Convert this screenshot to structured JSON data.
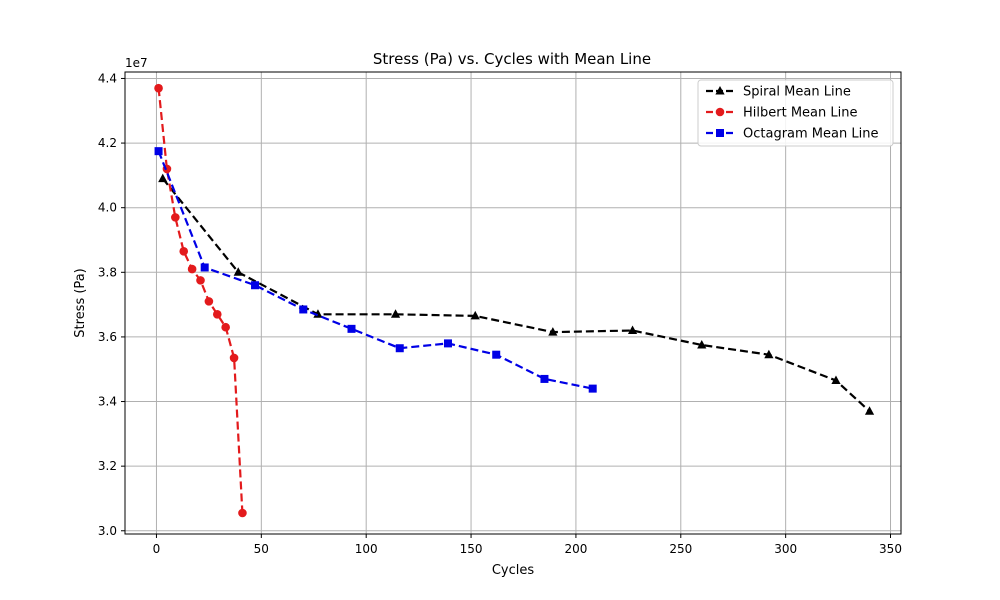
{
  "chart_data": {
    "type": "line",
    "title": "Stress (Pa) vs. Cycles with Mean Line",
    "xlabel": "Cycles",
    "ylabel": "Stress (Pa)",
    "y_offset_label": "1e7",
    "xlim": [
      -15,
      355
    ],
    "ylim": [
      29900000.0,
      44200000.0
    ],
    "x_ticks": [
      0,
      50,
      100,
      150,
      200,
      250,
      300,
      350
    ],
    "x_tick_labels": [
      "0",
      "50",
      "100",
      "150",
      "200",
      "250",
      "300",
      "350"
    ],
    "y_ticks": [
      30000000.0,
      32000000.0,
      34000000.0,
      36000000.0,
      38000000.0,
      40000000.0,
      42000000.0,
      44000000.0
    ],
    "y_tick_labels": [
      "3.0",
      "3.2",
      "3.4",
      "3.6",
      "3.8",
      "4.0",
      "4.2",
      "4.4"
    ],
    "grid": true,
    "legend_position": "top-right",
    "series": [
      {
        "name": "Spiral Mean Line",
        "color": "#000000",
        "marker": "triangle",
        "x": [
          3,
          39,
          77,
          114,
          152,
          189,
          227,
          260,
          292,
          324,
          340
        ],
        "y": [
          40900000.0,
          38000000.0,
          36700000.0,
          36700000.0,
          36650000.0,
          36150000.0,
          36200000.0,
          35750000.0,
          35450000.0,
          34650000.0,
          33700000.0
        ]
      },
      {
        "name": "Hilbert Mean Line",
        "color": "#e31a1c",
        "marker": "circle",
        "x": [
          1,
          5,
          9,
          13,
          17,
          21,
          25,
          29,
          33,
          37,
          41
        ],
        "y": [
          43700000.0,
          41200000.0,
          39700000.0,
          38650000.0,
          38100000.0,
          37750000.0,
          37100000.0,
          36700000.0,
          36300000.0,
          35350000.0,
          30550000.0
        ]
      },
      {
        "name": "Octagram Mean Line",
        "color": "#0000e6",
        "marker": "square",
        "x": [
          1,
          23,
          47,
          70,
          93,
          116,
          139,
          162,
          185,
          208
        ],
        "y": [
          41750000.0,
          38150000.0,
          37600000.0,
          36850000.0,
          36250000.0,
          35650000.0,
          35800000.0,
          35450000.0,
          34700000.0,
          34400000.0
        ]
      }
    ]
  }
}
